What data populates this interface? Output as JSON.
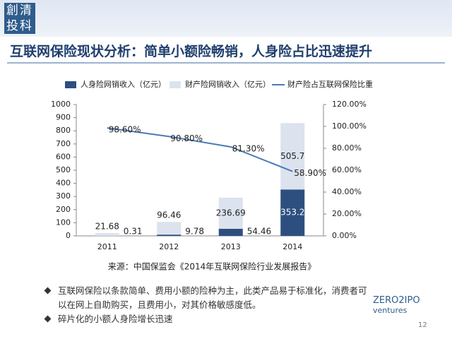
{
  "logo": "創清投科",
  "title": "互联网保险现状分析：简单小额险畅销，人身险占比迅速提升",
  "chart_data": {
    "type": "bar",
    "categories": [
      "2011",
      "2012",
      "2013",
      "2014"
    ],
    "stacked": true,
    "series": [
      {
        "name": "人身险网销收入（亿元）",
        "color": "#2d4f80",
        "values": [
          0.31,
          9.78,
          54.46,
          353.2
        ]
      },
      {
        "name": "财产险网销收入（亿元）",
        "color": "#dce3ee",
        "values": [
          21.68,
          96.46,
          236.69,
          505.7
        ]
      },
      {
        "name": "财产险占互联网保险比重",
        "type": "line",
        "axis": "y2",
        "color": "#4a7bb7",
        "values": [
          98.6,
          90.8,
          81.3,
          58.9
        ],
        "value_labels": [
          "98.60%",
          "90.80%",
          "81.30%",
          "58.90%"
        ]
      }
    ],
    "ylim": [
      0,
      1000
    ],
    "yticks": [
      0,
      100,
      200,
      300,
      400,
      500,
      600,
      700,
      800,
      900,
      1000
    ],
    "y2lim": [
      0,
      120
    ],
    "y2ticks": [
      {
        "value": 0,
        "label": "0.00%"
      },
      {
        "value": 20,
        "label": "20.00%"
      },
      {
        "value": 40,
        "label": "40.00%"
      },
      {
        "value": 60,
        "label": "60.00%"
      },
      {
        "value": 80,
        "label": "80.00%"
      },
      {
        "value": 100,
        "label": "100.00%"
      },
      {
        "value": 120,
        "label": "120.00%"
      }
    ],
    "legend": "top"
  },
  "source": "来源：中国保监会《2014年互联网保险行业发展报告》",
  "bullets": [
    "互联网保险以条款简单、费用小额的险种为主，此类产品易于标准化，消费者可以在网上自助购买，且费用小，对其价格敏感度低。",
    "碎片化的小额人身险增长迅速"
  ],
  "brand": {
    "name": "ZERO2IPO",
    "sub": "ventures",
    "page": "12"
  }
}
